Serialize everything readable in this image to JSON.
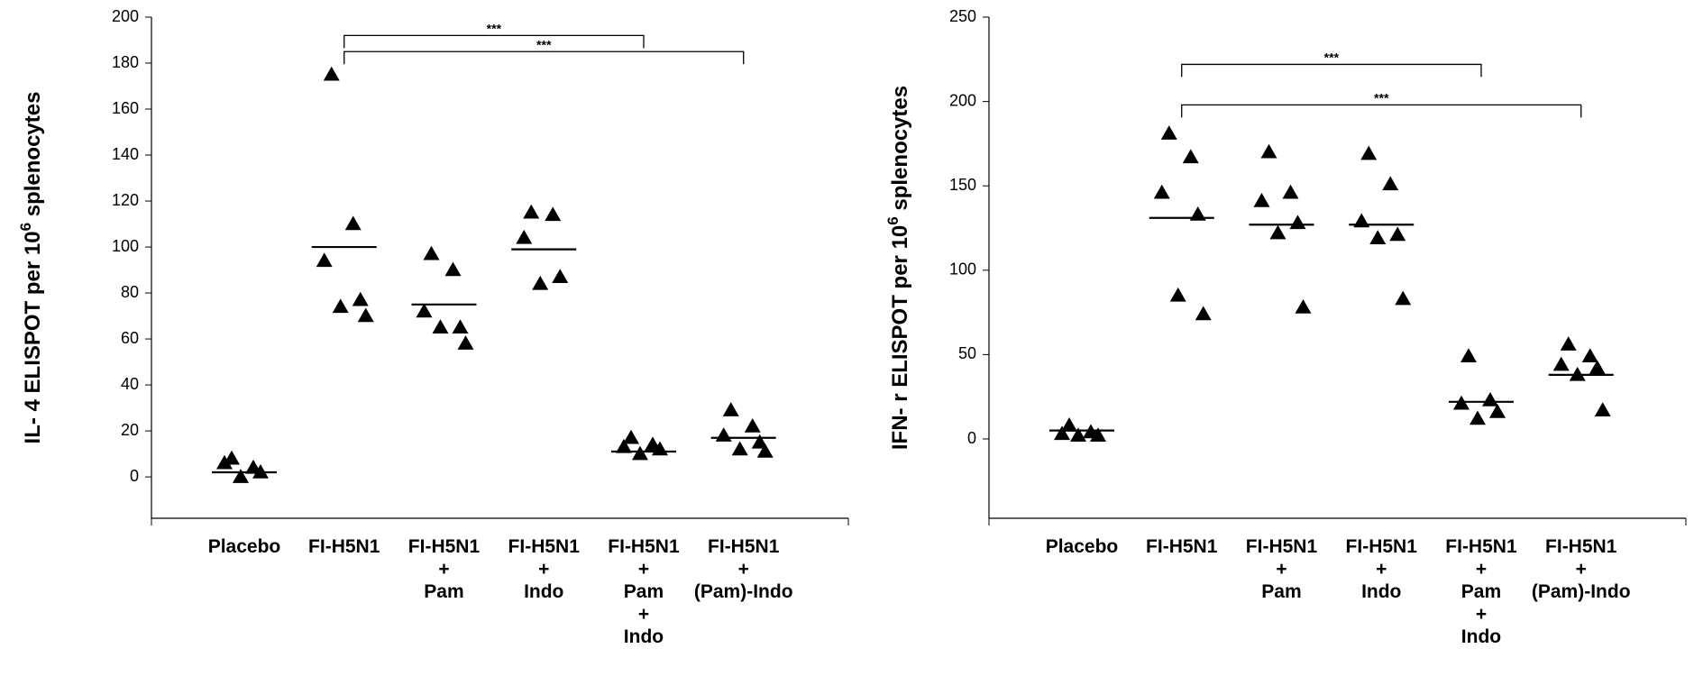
{
  "chart_data": [
    {
      "type": "dot",
      "ylabel": [
        "IL- 4 ELISPOT per 10",
        "6",
        " splenocytes"
      ],
      "categories": [
        [
          "Placebo"
        ],
        [
          "FI-H5N1"
        ],
        [
          "FI-H5N1",
          "+",
          "Pam"
        ],
        [
          "FI-H5N1",
          "+",
          "Indo"
        ],
        [
          "FI-H5N1",
          "+",
          "Pam",
          "+",
          "Indo"
        ],
        [
          "FI-H5N1",
          "+",
          "(Pam)-Indo"
        ]
      ],
      "values": [
        [
          8,
          4,
          6,
          2,
          0
        ],
        [
          175,
          110,
          94,
          77,
          74,
          70
        ],
        [
          97,
          90,
          72,
          65,
          65,
          58
        ],
        [
          115,
          114,
          104,
          87,
          84
        ],
        [
          17,
          14,
          13,
          12,
          10
        ],
        [
          29,
          22,
          18,
          15,
          12,
          11
        ]
      ],
      "medians": [
        2,
        100,
        75,
        99,
        11,
        17
      ],
      "ylim": [
        -18,
        200
      ],
      "yticks": [
        0,
        20,
        40,
        60,
        80,
        100,
        120,
        140,
        160,
        180,
        200
      ],
      "color": "#000000",
      "annotations": [
        {
          "text": "***",
          "from": 1,
          "to": 4,
          "y": 192
        },
        {
          "text": "***",
          "from": 1,
          "to": 5,
          "y": 185
        }
      ]
    },
    {
      "type": "dot",
      "ylabel": [
        "IFN- r ELISPOT per 10",
        "6",
        " splenocytes"
      ],
      "categories": [
        [
          "Placebo"
        ],
        [
          "FI-H5N1"
        ],
        [
          "FI-H5N1",
          "+",
          "Pam"
        ],
        [
          "FI-H5N1",
          "+",
          "Indo"
        ],
        [
          "FI-H5N1",
          "+",
          "Pam",
          "+",
          "Indo"
        ],
        [
          "FI-H5N1",
          "+",
          "(Pam)-Indo"
        ]
      ],
      "values": [
        [
          8,
          4,
          3,
          2,
          2
        ],
        [
          181,
          167,
          146,
          133,
          85,
          74
        ],
        [
          170,
          146,
          141,
          128,
          122,
          78
        ],
        [
          169,
          151,
          129,
          121,
          119,
          83
        ],
        [
          49,
          23,
          21,
          16,
          12
        ],
        [
          56,
          49,
          44,
          42,
          38,
          17
        ]
      ],
      "medians": [
        5,
        131,
        127,
        127,
        22,
        38
      ],
      "ylim": [
        -47,
        250
      ],
      "yticks": [
        0,
        50,
        100,
        150,
        200,
        250
      ],
      "color": "#000000",
      "annotations": [
        {
          "text": "***",
          "from": 1,
          "to": 4,
          "y": 222
        },
        {
          "text": "***",
          "from": 1,
          "to": 5,
          "y": 198
        }
      ]
    }
  ]
}
